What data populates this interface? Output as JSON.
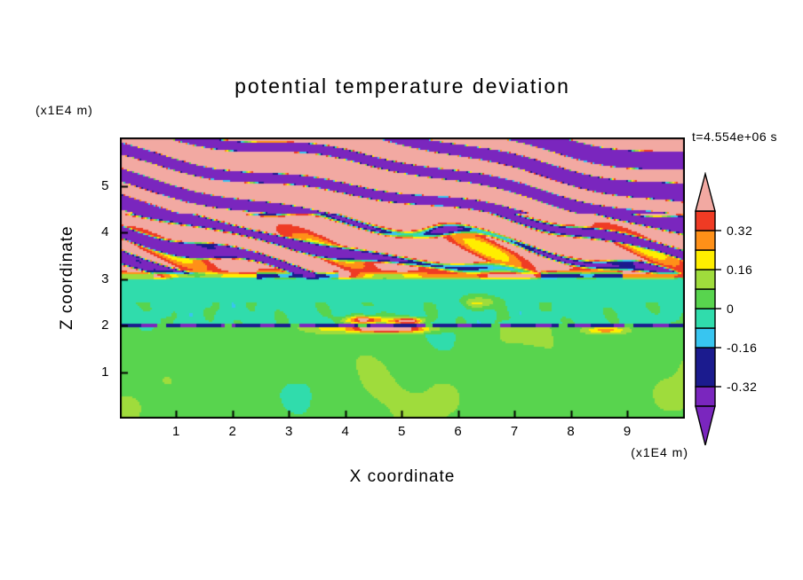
{
  "page": {
    "background": "#FFFFFF",
    "text_color": "#000000"
  },
  "chart_data": {
    "type": "filled-contour",
    "title": "potential temperature deviation",
    "xlabel": "X coordinate",
    "ylabel": "Z coordinate",
    "x_unit_label": "(x1E4 m)",
    "z_unit_label": "(x1E4 m)",
    "time_label": "t=4.554e+06 s",
    "x_range": [
      0,
      10.02
    ],
    "z_range": [
      0,
      6.05
    ],
    "x_ticks": [
      1,
      2,
      3,
      4,
      5,
      6,
      7,
      8,
      9
    ],
    "z_ticks": [
      1,
      2,
      3,
      4,
      5
    ],
    "grid": false,
    "legend_position": "right-colorbar",
    "levels": [
      -0.32,
      -0.16,
      -0.08,
      0,
      0.08,
      0.16,
      0.24,
      0.32,
      0.4
    ],
    "colors": [
      "#7A26BE",
      "#1B1B8E",
      "#38C5F0",
      "#30DCAC",
      "#58D44E",
      "#9FDC3C",
      "#FFEE00",
      "#FF9018",
      "#EF3B24",
      "#F2A9A2"
    ],
    "colorbar": {
      "vmin": -0.4,
      "vmax": 0.4,
      "tick_values": [
        0.32,
        0.16,
        0,
        -0.16,
        -0.32
      ],
      "tick_labels": [
        "0.32",
        "0.16",
        "0",
        "-0.16",
        "-0.32"
      ]
    },
    "field_description": {
      "z_0_to_2": "green background (~+0.04) with large yellow-green blobs (~+0.12) and thin teal wisps",
      "z_2_interface": "thin dashed navy/purple line of strong negative deviation (~-0.30) with orange/red hotspots near x=4.3-5.1",
      "z_2_to_3": "near-uniform teal band (~-0.03), green speckles below z=2.5",
      "z_3_interface": "quasi-continuous red/orange streak (~+0.3..0.5) with navy dashed segments",
      "z_3_to_4.4": "chaotic wave-breaking zone: salmon background, tilted purple bands, red/orange/yellow fringes, navy and cyan pockets",
      "z_4.4_to_6": "regular gravity-wave stripes: purple bands (<-0.32) tilted down-to-the-right on salmon background (>+0.4) with occasional cyan flecks"
    }
  }
}
